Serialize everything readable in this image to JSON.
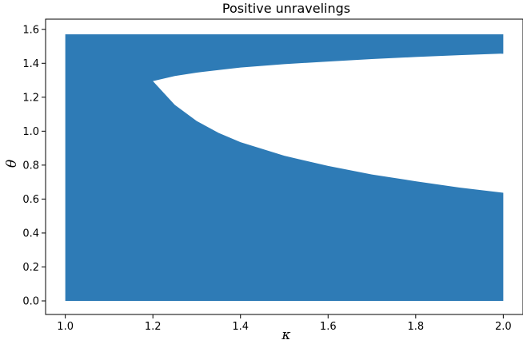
{
  "chart_data": {
    "type": "area",
    "title": "Positive unravelings",
    "xlabel": "κ",
    "ylabel": "θ",
    "xlim": [
      0.955,
      2.045
    ],
    "ylim": [
      -0.08,
      1.66
    ],
    "xticks": [
      1.0,
      1.2,
      1.4,
      1.6,
      1.8,
      2.0
    ],
    "xtick_labels": [
      "1.0",
      "1.2",
      "1.4",
      "1.6",
      "1.8",
      "2.0"
    ],
    "yticks": [
      0.0,
      0.2,
      0.4,
      0.6,
      0.8,
      1.0,
      1.2,
      1.4,
      1.6
    ],
    "ytick_labels": [
      "0.0",
      "0.2",
      "0.4",
      "0.6",
      "0.8",
      "1.0",
      "1.2",
      "1.4",
      "1.6"
    ],
    "grid": false,
    "fill_color": "#2e7bb6",
    "region": {
      "kappa_range": [
        1.0,
        2.0
      ],
      "theta_range": [
        0.0,
        1.5708
      ]
    },
    "excluded_region": {
      "kappa": [
        1.2,
        1.25,
        1.3,
        1.35,
        1.4,
        1.5,
        1.6,
        1.7,
        1.8,
        1.9,
        2.0
      ],
      "theta_upper": [
        1.295,
        1.325,
        1.345,
        1.36,
        1.375,
        1.395,
        1.41,
        1.425,
        1.437,
        1.448,
        1.457
      ],
      "theta_lower": [
        1.295,
        1.155,
        1.06,
        0.99,
        0.935,
        0.855,
        0.795,
        0.745,
        0.705,
        0.668,
        0.637
      ]
    }
  }
}
